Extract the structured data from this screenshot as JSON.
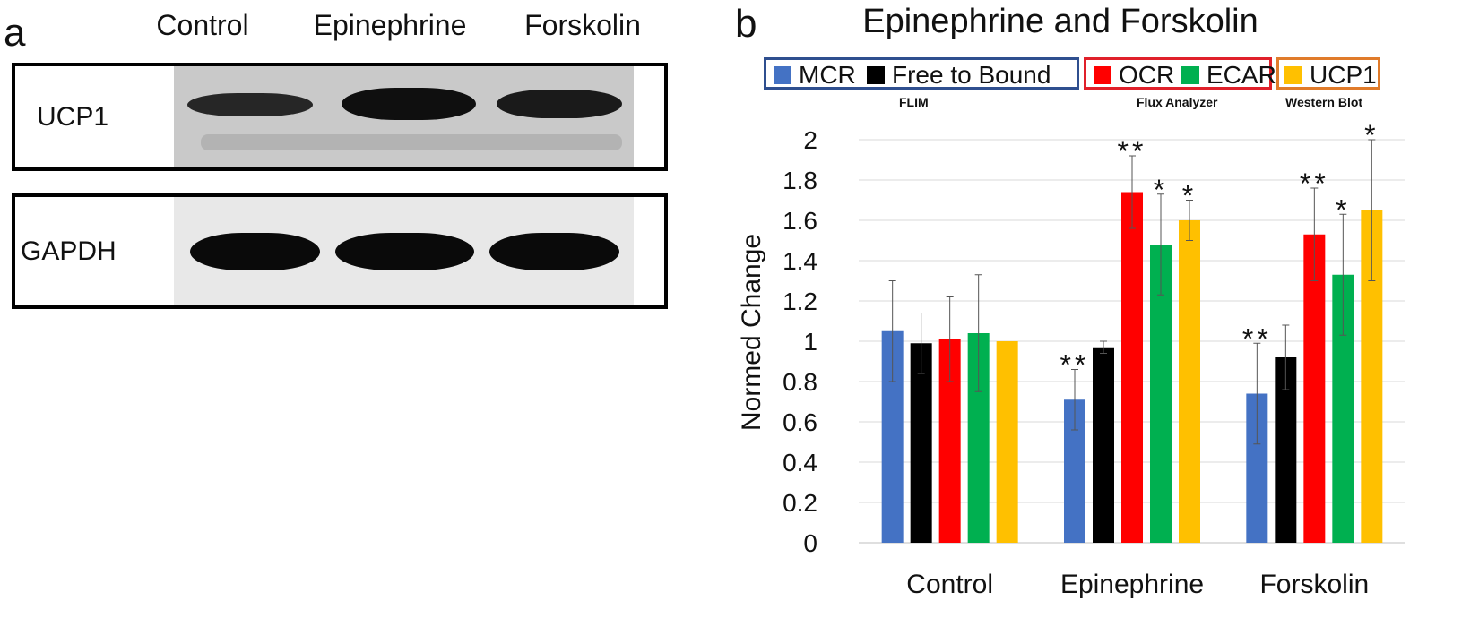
{
  "panel_a": {
    "letter": "a",
    "lanes": [
      "Control",
      "Epinephrine",
      "Forskolin"
    ],
    "blots": [
      {
        "label": "UCP1",
        "band_intensity": [
          0.55,
          0.95,
          0.75
        ]
      },
      {
        "label": "GAPDH",
        "band_intensity": [
          1.0,
          1.0,
          1.0
        ]
      }
    ]
  },
  "panel_b": {
    "letter": "b",
    "legend_groups": [
      {
        "caption": "FLIM",
        "border_color": "#2f4f8f",
        "items": [
          {
            "label": "MCR",
            "color": "#4472c4"
          },
          {
            "label": "Free to Bound",
            "color": "#000000"
          }
        ]
      },
      {
        "caption": "Flux Analyzer",
        "border_color": "#e0202a",
        "items": [
          {
            "label": "OCR",
            "color": "#ff0000"
          },
          {
            "label": "ECAR",
            "color": "#00b050"
          }
        ]
      },
      {
        "caption": "Western Blot",
        "border_color": "#e07b2a",
        "items": [
          {
            "label": "UCP1",
            "color": "#ffc000"
          }
        ]
      }
    ]
  },
  "chart_data": {
    "type": "bar",
    "title": "Epinephrine and Forskolin",
    "xlabel": "",
    "ylabel": "Normed Change",
    "ylim": [
      0,
      2
    ],
    "yticks": [
      "0",
      "0.2",
      "0.4",
      "0.6",
      "0.8",
      "1",
      "1.2",
      "1.4",
      "1.6",
      "1.8",
      "2"
    ],
    "grid": "horizontal",
    "categories": [
      "Control",
      "Epinephrine",
      "Forskolin"
    ],
    "series": [
      {
        "name": "MCR",
        "color": "#4472c4",
        "values": [
          1.05,
          0.71,
          0.74
        ],
        "errors": [
          0.25,
          0.15,
          0.25
        ],
        "significance": [
          "",
          "**",
          "**"
        ]
      },
      {
        "name": "Free to Bound",
        "color": "#000000",
        "values": [
          0.99,
          0.97,
          0.92
        ],
        "errors": [
          0.15,
          0.03,
          0.16
        ],
        "significance": [
          "",
          "",
          ""
        ]
      },
      {
        "name": "OCR",
        "color": "#ff0000",
        "values": [
          1.01,
          1.74,
          1.53
        ],
        "errors": [
          0.21,
          0.18,
          0.23
        ],
        "significance": [
          "",
          "**",
          "**"
        ]
      },
      {
        "name": "ECAR",
        "color": "#00b050",
        "values": [
          1.04,
          1.48,
          1.33
        ],
        "errors": [
          0.29,
          0.25,
          0.3
        ],
        "significance": [
          "",
          "*",
          "*"
        ]
      },
      {
        "name": "UCP1",
        "color": "#ffc000",
        "values": [
          1.0,
          1.6,
          1.65
        ],
        "errors": [
          0.0,
          0.1,
          0.35
        ],
        "significance": [
          "",
          "*",
          "*"
        ]
      }
    ]
  }
}
